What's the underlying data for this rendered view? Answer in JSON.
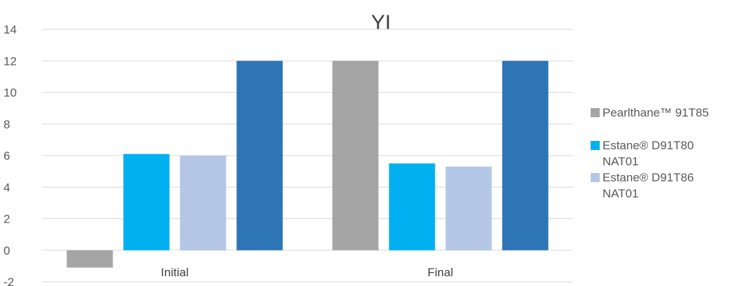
{
  "chart_data": {
    "type": "bar",
    "title": "YI",
    "categories": [
      "Initial",
      "Final"
    ],
    "ylim": [
      -2,
      14
    ],
    "yticks": [
      -2,
      0,
      2,
      4,
      6,
      8,
      10,
      12,
      14
    ],
    "grid": true,
    "legend_position": "right",
    "series": [
      {
        "name": "Pearlthane™ 91T85",
        "color": "#a5a5a5",
        "values": [
          -1.1,
          12
        ]
      },
      {
        "name": "Estane® D91T80 NAT01",
        "color": "#00b0f0",
        "values": [
          6.1,
          5.5
        ]
      },
      {
        "name": "Estane® D91T86 NAT01",
        "color": "#b4c7e7",
        "values": [
          6.0,
          5.3
        ]
      },
      {
        "name": "",
        "color": "#2e75b6",
        "values": [
          12,
          12
        ]
      }
    ]
  }
}
